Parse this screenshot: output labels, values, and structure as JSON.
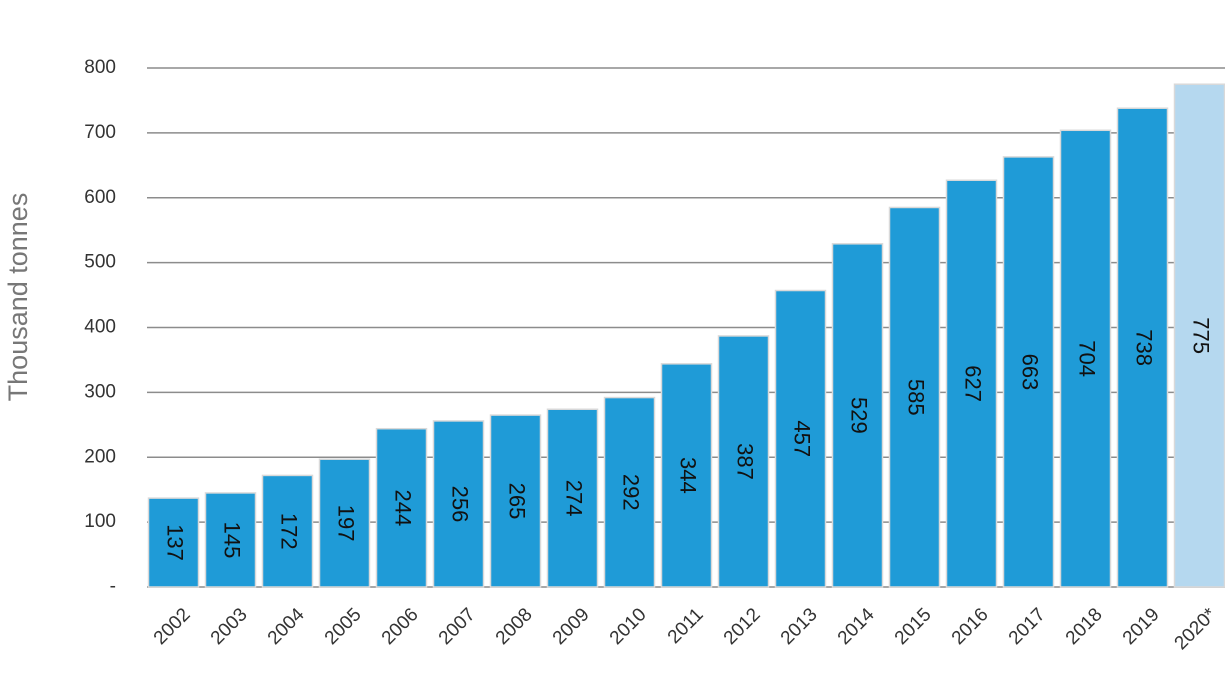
{
  "chart_data": {
    "type": "bar",
    "y_label": "Thousand tonnes",
    "categories": [
      "2002",
      "2003",
      "2004",
      "2005",
      "2006",
      "2007",
      "2008",
      "2009",
      "2010",
      "2011",
      "2012",
      "2013",
      "2014",
      "2015",
      "2016",
      "2017",
      "2018",
      "2019",
      "2020*"
    ],
    "values": [
      137,
      145,
      172,
      197,
      244,
      256,
      265,
      274,
      292,
      344,
      387,
      457,
      529,
      585,
      627,
      663,
      704,
      738,
      775
    ],
    "colors": [
      "#1f9bd7",
      "#1f9bd7",
      "#1f9bd7",
      "#1f9bd7",
      "#1f9bd7",
      "#1f9bd7",
      "#1f9bd7",
      "#1f9bd7",
      "#1f9bd7",
      "#1f9bd7",
      "#1f9bd7",
      "#1f9bd7",
      "#1f9bd7",
      "#1f9bd7",
      "#1f9bd7",
      "#1f9bd7",
      "#1f9bd7",
      "#1f9bd7",
      "#b5d8ef"
    ],
    "ylim": [
      0,
      800
    ],
    "yticks": [
      {
        "value": 0,
        "label": "-"
      },
      100,
      200,
      300,
      400,
      500,
      600,
      700,
      800
    ],
    "grid": true
  }
}
